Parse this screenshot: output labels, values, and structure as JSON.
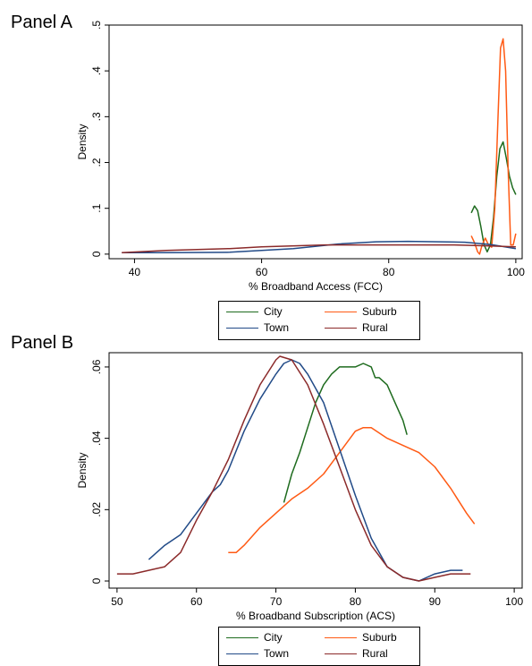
{
  "panels": [
    {
      "label": "Panel A",
      "chart_data": {
        "type": "line",
        "xlabel": "% Broadband Access (FCC)",
        "ylabel": "Density",
        "xlim": [
          36,
          101
        ],
        "ylim": [
          -0.01,
          0.5
        ],
        "xticks": [
          40,
          60,
          80,
          100
        ],
        "xtick_labels": [
          "40",
          "60",
          "80",
          "100"
        ],
        "yticks": [
          0,
          0.1,
          0.2,
          0.3,
          0.4,
          0.5
        ],
        "ytick_labels": [
          "0",
          ".1",
          ".2",
          ".3",
          ".4",
          ".5"
        ],
        "grid": false,
        "legend_position": "bottom",
        "series": [
          {
            "name": "City",
            "color": "#1e6b1e",
            "x": [
              93,
              93.5,
              94,
              94.5,
              95,
              95.5,
              96,
              96.5,
              97,
              97.5,
              98,
              98.5,
              99,
              99.5,
              100
            ],
            "y": [
              0.09,
              0.105,
              0.095,
              0.06,
              0.02,
              0.005,
              0.02,
              0.08,
              0.17,
              0.23,
              0.245,
              0.21,
              0.17,
              0.145,
              0.13
            ]
          },
          {
            "name": "Suburb",
            "color": "#ff5a14",
            "x": [
              93,
              93.5,
              94,
              94.3,
              94.7,
              95.2,
              95.7,
              96.2,
              96.7,
              97.2,
              97.6,
              98,
              98.4,
              98.8,
              99.2,
              99.6,
              100
            ],
            "y": [
              0.04,
              0.025,
              0.005,
              0.0,
              0.02,
              0.035,
              0.02,
              0.015,
              0.1,
              0.3,
              0.45,
              0.47,
              0.4,
              0.18,
              0.02,
              0.02,
              0.045
            ]
          },
          {
            "name": "Town",
            "color": "#214a87",
            "x": [
              38,
              45,
              55,
              65,
              72,
              78,
              83,
              88,
              92,
              96,
              100
            ],
            "y": [
              0.003,
              0.003,
              0.004,
              0.012,
              0.022,
              0.027,
              0.028,
              0.027,
              0.026,
              0.021,
              0.012
            ]
          },
          {
            "name": "Rural",
            "color": "#8b2a2a",
            "x": [
              38,
              45,
              55,
              60,
              70,
              80,
              90,
              96,
              100
            ],
            "y": [
              0.003,
              0.008,
              0.012,
              0.016,
              0.02,
              0.02,
              0.02,
              0.018,
              0.016
            ]
          }
        ]
      }
    },
    {
      "label": "Panel B",
      "chart_data": {
        "type": "line",
        "xlabel": "% Broadband Subscription (ACS)",
        "ylabel": "Density",
        "xlim": [
          49,
          101
        ],
        "ylim": [
          -0.002,
          0.064
        ],
        "xticks": [
          50,
          60,
          70,
          80,
          90,
          100
        ],
        "xtick_labels": [
          "50",
          "60",
          "70",
          "80",
          "90",
          "100"
        ],
        "yticks": [
          0,
          0.02,
          0.04,
          0.06
        ],
        "ytick_labels": [
          "0",
          ".02",
          ".04",
          ".06"
        ],
        "grid": false,
        "legend_position": "bottom",
        "series": [
          {
            "name": "City",
            "color": "#1e6b1e",
            "x": [
              71,
              72,
              73,
              74,
              75,
              76,
              77,
              78,
              79,
              80,
              81,
              82,
              82.5,
              83,
              84,
              85,
              86,
              86.5
            ],
            "y": [
              0.022,
              0.03,
              0.036,
              0.043,
              0.05,
              0.055,
              0.058,
              0.06,
              0.06,
              0.06,
              0.061,
              0.06,
              0.057,
              0.057,
              0.055,
              0.05,
              0.045,
              0.041
            ]
          },
          {
            "name": "Suburb",
            "color": "#ff5a14",
            "x": [
              64,
              65,
              66,
              68,
              70,
              72,
              74,
              76,
              78,
              80,
              81,
              82,
              84,
              86,
              88,
              90,
              92,
              94,
              95
            ],
            "y": [
              0.008,
              0.008,
              0.01,
              0.015,
              0.019,
              0.023,
              0.026,
              0.03,
              0.036,
              0.042,
              0.043,
              0.043,
              0.04,
              0.038,
              0.036,
              0.032,
              0.026,
              0.019,
              0.016
            ]
          },
          {
            "name": "Town",
            "color": "#214a87",
            "x": [
              54,
              56,
              58,
              60,
              62,
              63,
              64,
              66,
              68,
              70,
              71,
              72,
              73,
              74,
              76,
              78,
              80,
              82,
              84,
              86,
              88,
              90,
              92,
              93.5
            ],
            "y": [
              0.006,
              0.01,
              0.013,
              0.019,
              0.025,
              0.027,
              0.031,
              0.042,
              0.051,
              0.058,
              0.061,
              0.062,
              0.061,
              0.058,
              0.05,
              0.037,
              0.024,
              0.012,
              0.004,
              0.001,
              0.0,
              0.002,
              0.003,
              0.003
            ]
          },
          {
            "name": "Rural",
            "color": "#8b2a2a",
            "x": [
              50,
              52,
              54,
              56,
              58,
              60,
              62,
              64,
              66,
              68,
              70,
              70.5,
              72,
              74,
              76,
              78,
              80,
              82,
              84,
              86,
              88,
              90,
              92,
              94.5
            ],
            "y": [
              0.002,
              0.002,
              0.003,
              0.004,
              0.008,
              0.017,
              0.025,
              0.034,
              0.045,
              0.055,
              0.062,
              0.063,
              0.062,
              0.055,
              0.044,
              0.032,
              0.02,
              0.01,
              0.004,
              0.001,
              0.0,
              0.001,
              0.002,
              0.002
            ]
          }
        ]
      }
    }
  ]
}
